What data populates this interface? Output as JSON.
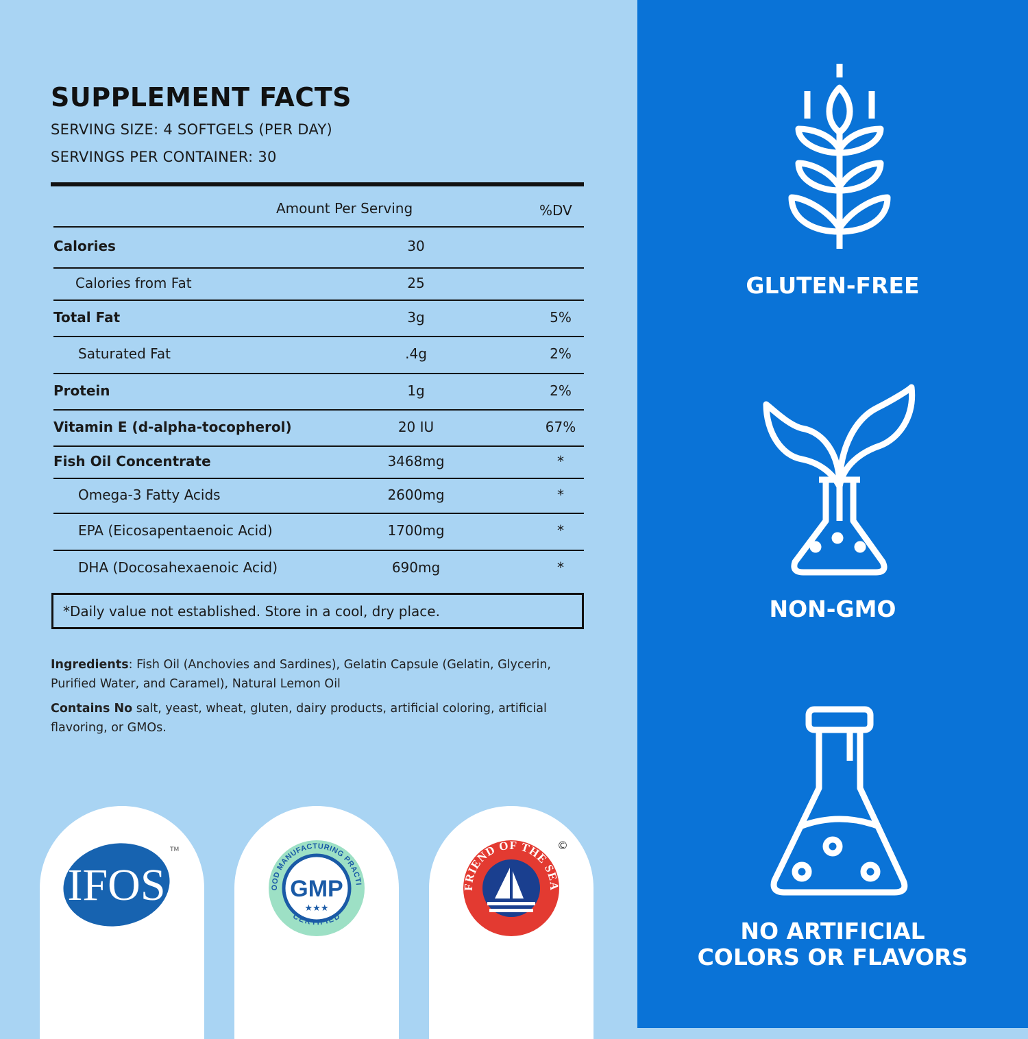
{
  "facts": {
    "title": "SUPPLEMENT FACTS",
    "serving_size": "SERVING SIZE: 4 SOFTGELS (PER DAY)",
    "servings_per_container": "SERVINGS PER CONTAINER: 30",
    "header": {
      "amount": "Amount Per Serving",
      "dv": "%DV"
    },
    "rows": [
      {
        "name": "Calories",
        "amount": "30",
        "dv": ""
      },
      {
        "name": "Calories from Fat",
        "amount": "25",
        "dv": ""
      },
      {
        "name": "Total Fat",
        "amount": "3g",
        "dv": "5%"
      },
      {
        "name": "Saturated Fat",
        "amount": ".4g",
        "dv": "2%"
      },
      {
        "name": "Protein",
        "amount": "1g",
        "dv": "2%"
      },
      {
        "name": "Vitamin E (d-alpha-tocopherol)",
        "amount": "20 IU",
        "dv": "67%"
      },
      {
        "name": "Fish Oil Concentrate",
        "amount": "3468mg",
        "dv": "*"
      },
      {
        "name": "Omega-3 Fatty Acids",
        "amount": "2600mg",
        "dv": "*"
      },
      {
        "name": "EPA (Eicosapentaenoic Acid)",
        "amount": "1700mg",
        "dv": "*"
      },
      {
        "name": "DHA (Docosahexaenoic Acid)",
        "amount": "690mg",
        "dv": "*"
      }
    ],
    "footnote": "*Daily value not established.  Store in a cool, dry place.",
    "ingredients_label": "Ingredients",
    "ingredients": ": Fish Oil (Anchovies and Sardines), Gelatin Capsule (Gelatin, Glycerin, Purified Water, and Caramel), Natural Lemon Oil",
    "contains_no_label": "Contains No",
    "contains_no": " salt, yeast, wheat, gluten, dairy products, artificial coloring, artificial flavoring, or GMOs."
  },
  "certifications": [
    {
      "name": "IFOS",
      "mark": "TM"
    },
    {
      "name": "GMP",
      "ring_top": "GOOD MANUFACTURING PRACTICE",
      "ring_bottom": "CERTIFIED"
    },
    {
      "name": "FRIEND OF THE SEA",
      "mark": "©"
    }
  ],
  "badges": [
    {
      "label": "GLUTEN-FREE",
      "icon": "wheat-icon"
    },
    {
      "label": "NON-GMO",
      "icon": "plant-flask-icon"
    },
    {
      "label": "NO ARTIFICIAL COLORS OR FLAVORS",
      "line1": "NO ARTIFICIAL",
      "line2": "COLORS OR FLAVORS",
      "icon": "flask-icon"
    }
  ],
  "colors": {
    "left_bg": "#a9d4f3",
    "right_bg": "#0a73d7",
    "text": "#1a1a1a"
  }
}
